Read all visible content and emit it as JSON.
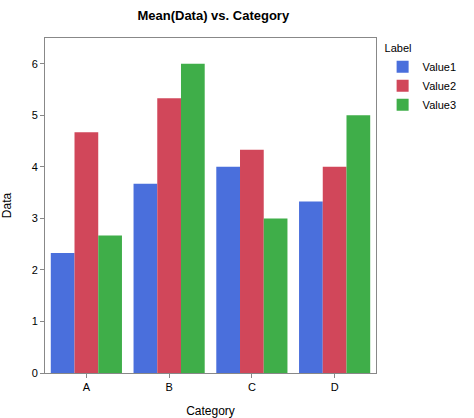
{
  "chart_data": {
    "type": "bar",
    "title": "Mean(Data) vs. Category",
    "x_label": "Category",
    "y_label": "Data",
    "legend_title": "Label",
    "categories": [
      "A",
      "B",
      "C",
      "D"
    ],
    "series": [
      {
        "name": "Value1",
        "color": "#4a6fdc",
        "values": [
          2.33,
          3.67,
          4.0,
          3.33
        ]
      },
      {
        "name": "Value2",
        "color": "#d1475a",
        "values": [
          4.67,
          5.33,
          4.33,
          4.0
        ]
      },
      {
        "name": "Value3",
        "color": "#3fae49",
        "values": [
          2.67,
          6.0,
          3.0,
          5.0
        ]
      }
    ],
    "ylim": [
      0,
      6.5
    ],
    "yticks": [
      0,
      1,
      2,
      3,
      4,
      5,
      6
    ],
    "grid": false,
    "legend": "right"
  }
}
